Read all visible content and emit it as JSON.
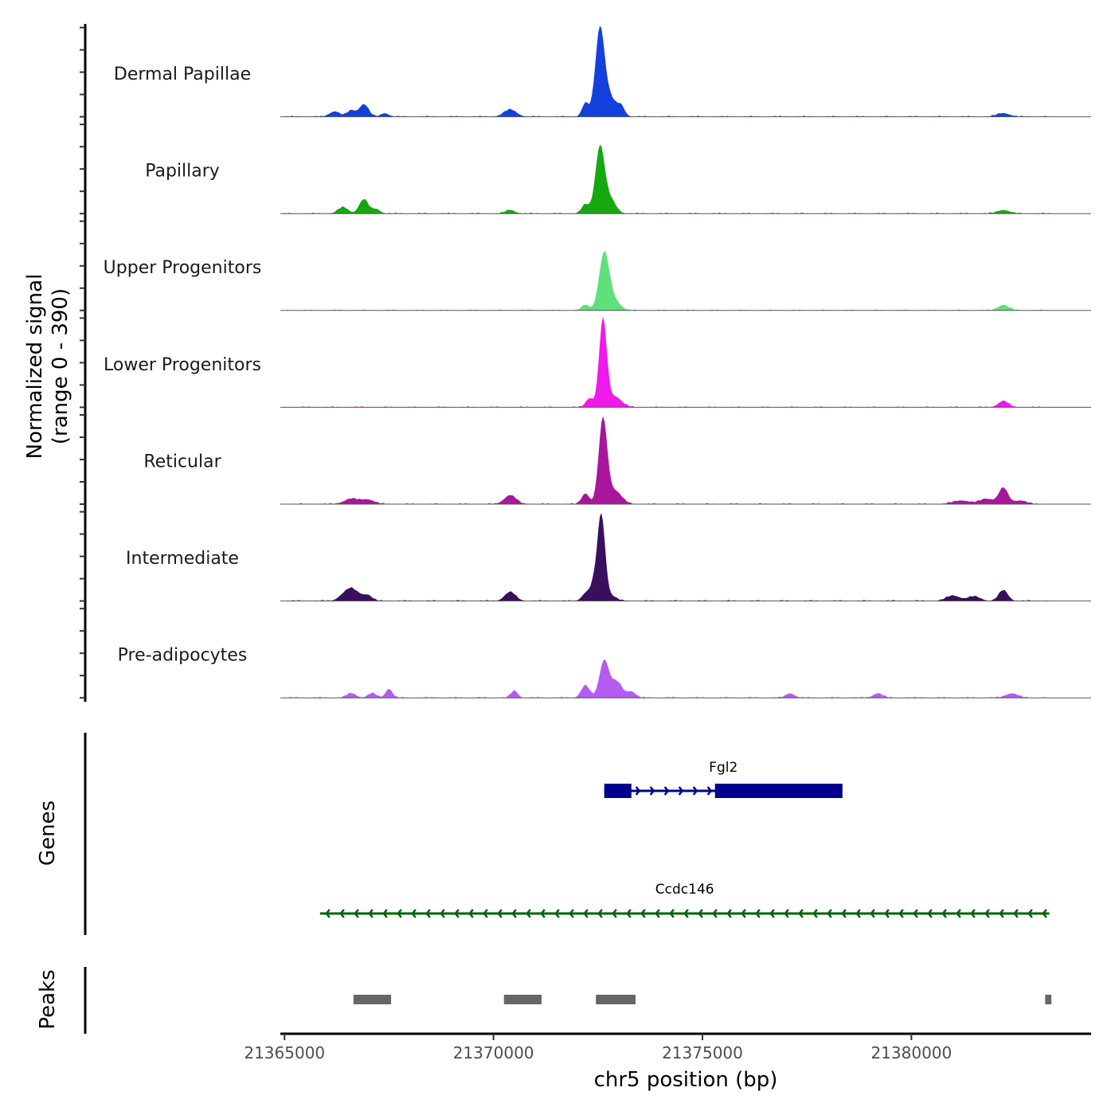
{
  "chart_data": {
    "type": "area",
    "description_type": "genome coverage tracks",
    "chromosome": "chr5",
    "xlim": [
      21364900,
      21384300
    ],
    "x_ticks": [
      21365000,
      21370000,
      21375000,
      21380000
    ],
    "x_tick_labels": [
      "21365000",
      "21370000",
      "21375000",
      "21380000"
    ],
    "xlabel": "chr5 position (bp)",
    "ylabel_line1": "Normalized signal",
    "ylabel_line2": "(range 0 - 390)",
    "ylim": [
      0,
      390
    ],
    "region_start": 21365000,
    "region_end": 21383300,
    "series": [
      {
        "name": "Dermal Papillae",
        "color": "#1440dc",
        "peaks": [
          [
            21366200,
            0.06,
            120
          ],
          [
            21366600,
            0.07,
            100
          ],
          [
            21366900,
            0.14,
            110
          ],
          [
            21367400,
            0.04,
            90
          ],
          [
            21370400,
            0.08,
            150
          ],
          [
            21372200,
            0.15,
            80
          ],
          [
            21372550,
            1.0,
            110
          ],
          [
            21372800,
            0.2,
            120
          ],
          [
            21373050,
            0.12,
            90
          ],
          [
            21382200,
            0.04,
            150
          ]
        ]
      },
      {
        "name": "Papillary",
        "color": "#16a80e",
        "peaks": [
          [
            21366400,
            0.07,
            120
          ],
          [
            21366900,
            0.16,
            110
          ],
          [
            21367200,
            0.05,
            90
          ],
          [
            21370400,
            0.04,
            110
          ],
          [
            21372200,
            0.1,
            90
          ],
          [
            21372550,
            0.75,
            110
          ],
          [
            21372800,
            0.15,
            130
          ],
          [
            21382200,
            0.04,
            140
          ]
        ]
      },
      {
        "name": "Upper Progenitors",
        "color": "#5ee07a",
        "peaks": [
          [
            21372200,
            0.06,
            90
          ],
          [
            21372650,
            0.64,
            120
          ],
          [
            21372900,
            0.1,
            140
          ],
          [
            21382200,
            0.06,
            130
          ]
        ]
      },
      {
        "name": "Lower Progenitors",
        "color": "#f018ea",
        "peaks": [
          [
            21372300,
            0.1,
            90
          ],
          [
            21372620,
            0.98,
            90
          ],
          [
            21372900,
            0.12,
            160
          ],
          [
            21382200,
            0.07,
            120
          ]
        ]
      },
      {
        "name": "Reticular",
        "color": "#a8169c",
        "peaks": [
          [
            21366600,
            0.06,
            170
          ],
          [
            21367000,
            0.05,
            150
          ],
          [
            21370400,
            0.1,
            140
          ],
          [
            21372200,
            0.12,
            90
          ],
          [
            21372620,
            0.95,
            100
          ],
          [
            21372900,
            0.15,
            160
          ],
          [
            21381200,
            0.04,
            200
          ],
          [
            21381800,
            0.06,
            160
          ],
          [
            21382200,
            0.18,
            110
          ],
          [
            21382600,
            0.04,
            150
          ]
        ]
      },
      {
        "name": "Intermediate",
        "color": "#3a0f5e",
        "peaks": [
          [
            21366400,
            0.06,
            120
          ],
          [
            21366600,
            0.12,
            120
          ],
          [
            21366800,
            0.05,
            110
          ],
          [
            21367000,
            0.06,
            100
          ],
          [
            21370400,
            0.1,
            130
          ],
          [
            21372200,
            0.08,
            90
          ],
          [
            21372400,
            0.18,
            90
          ],
          [
            21372580,
            0.95,
            90
          ],
          [
            21372800,
            0.06,
            130
          ],
          [
            21381000,
            0.06,
            160
          ],
          [
            21381500,
            0.05,
            150
          ],
          [
            21382200,
            0.12,
            110
          ]
        ]
      },
      {
        "name": "Pre-adipocytes",
        "color": "#b55cf0",
        "peaks": [
          [
            21366600,
            0.05,
            110
          ],
          [
            21367100,
            0.05,
            100
          ],
          [
            21367500,
            0.1,
            80
          ],
          [
            21370500,
            0.08,
            80
          ],
          [
            21372200,
            0.14,
            100
          ],
          [
            21372650,
            0.42,
            110
          ],
          [
            21372950,
            0.18,
            130
          ],
          [
            21373300,
            0.07,
            100
          ],
          [
            21377100,
            0.05,
            100
          ],
          [
            21379200,
            0.05,
            110
          ],
          [
            21382400,
            0.05,
            140
          ]
        ]
      }
    ],
    "genes": [
      {
        "name": "Fgl2",
        "strand": "+",
        "color": "#00008b",
        "start": 21372650,
        "end": 21378350,
        "exons": [
          [
            21372650,
            21373300
          ],
          [
            21375300,
            21378350
          ]
        ]
      },
      {
        "name": "Ccdc146",
        "strand": "-",
        "color": "#006400",
        "start": 21365850,
        "end": 21383300,
        "exons": []
      }
    ],
    "peaks_track": {
      "color": "#666666",
      "regions": [
        [
          21366650,
          21367550
        ],
        [
          21370250,
          21371150
        ],
        [
          21372450,
          21373400
        ],
        [
          21383200,
          21383350
        ]
      ]
    },
    "panel_labels": {
      "genes": "Genes",
      "peaks": "Peaks"
    }
  }
}
